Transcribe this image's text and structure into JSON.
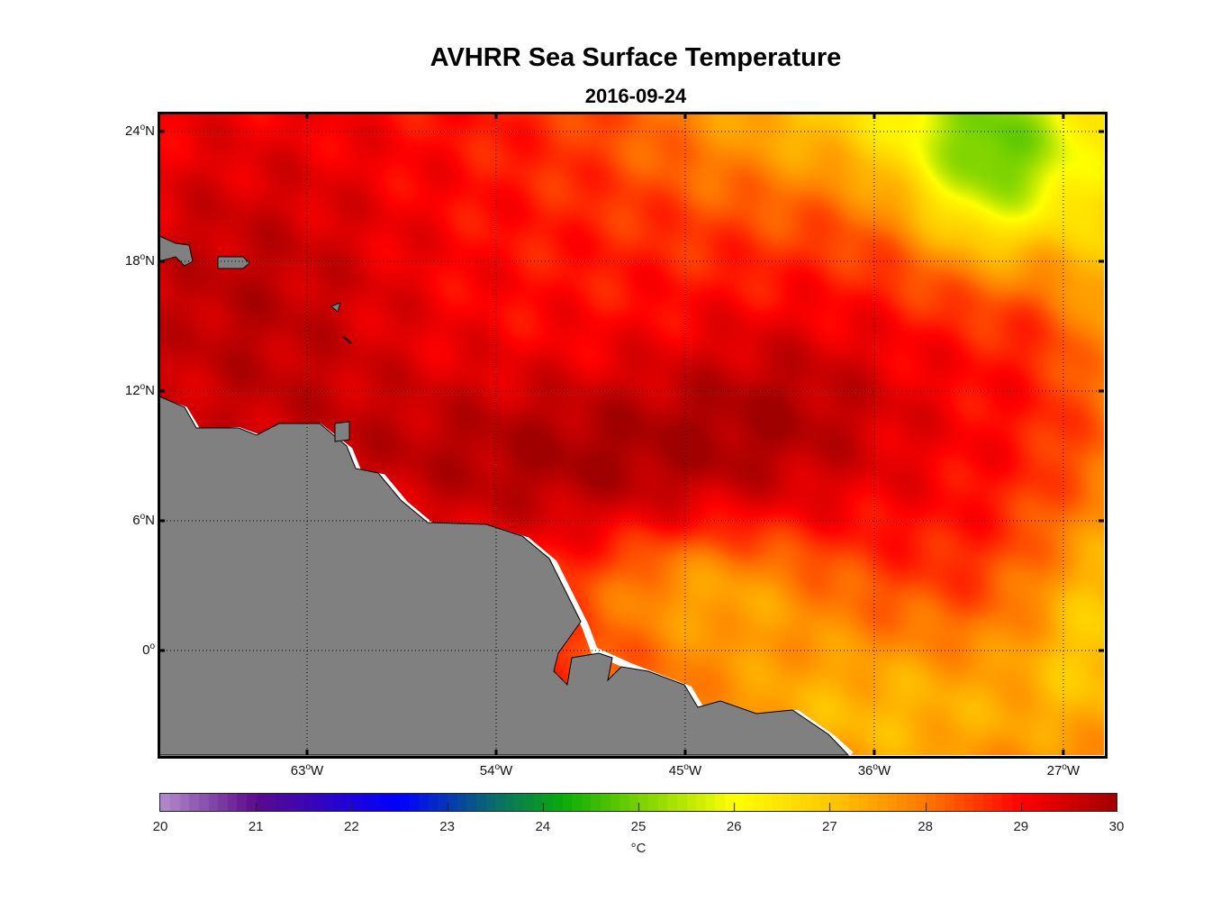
{
  "chart_data": {
    "type": "heatmap",
    "title": "AVHRR Sea Surface Temperature",
    "subtitle": "2016-09-24",
    "variable": "Sea surface temperature",
    "lon_range": [
      -70,
      -25
    ],
    "lat_range": [
      -4.8,
      25.1
    ],
    "lon_ticks": [
      "63",
      "54",
      "45",
      "36",
      "27"
    ],
    "lon_tick_suffix": "W",
    "lat_ticks": [
      "24",
      "18",
      "12",
      "6",
      "0"
    ],
    "lat_tick_suffix": "N",
    "colorbar": {
      "min": 20,
      "max": 30,
      "ticks": [
        "20",
        "21",
        "22",
        "23",
        "24",
        "25",
        "26",
        "27",
        "28",
        "29",
        "30"
      ],
      "label": "°C"
    },
    "land_color": "#808080",
    "grid": "dotted"
  }
}
